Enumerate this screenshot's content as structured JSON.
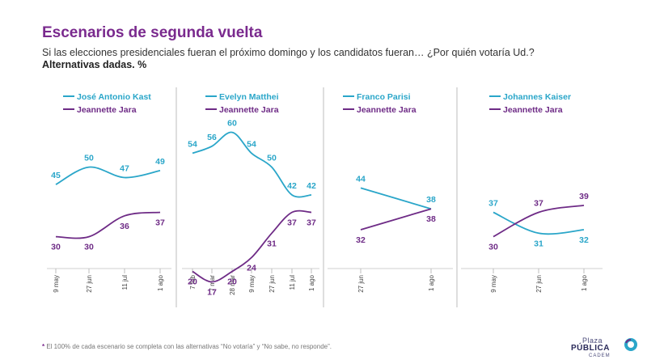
{
  "header": {
    "title": "Escenarios de segunda vuelta",
    "subtitle": "Si las elecciones presidenciales fueran el próximo domingo y los candidatos fueran… ¿Por quién votaría Ud.?",
    "subtitle2": "Alternativas dadas. %"
  },
  "footnote": {
    "star": "*",
    "text": " El 100% de cada escenario se completa con las alternativas “No votaría” y “No sabe, no responde”."
  },
  "logo": {
    "line1": "Plaza",
    "line2": "PÚBLICA",
    "line3": "CADEM"
  },
  "colors": {
    "blue": "#2aa6c9",
    "purple": "#6e2b86",
    "title": "#7a2a8e"
  },
  "chart_data": [
    {
      "type": "line",
      "x": [
        "9 may",
        "27 jun",
        "11 jul",
        "1 ago"
      ],
      "ylim": [
        0,
        80
      ],
      "series": [
        {
          "name": "José Antonio Kast",
          "color": "#2aa6c9",
          "values": [
            45,
            50,
            47,
            49
          ]
        },
        {
          "name": "Jeannette Jara",
          "color": "#6e2b86",
          "values": [
            30,
            30,
            36,
            37
          ]
        }
      ]
    },
    {
      "type": "line",
      "x": [
        "7 feb",
        "7 mar",
        "28 mar",
        "9 may",
        "27 jun",
        "11 jul",
        "1 ago"
      ],
      "ylim": [
        0,
        80
      ],
      "series": [
        {
          "name": "Evelyn Matthei",
          "color": "#2aa6c9",
          "values": [
            54,
            56,
            60,
            54,
            50,
            42,
            42
          ]
        },
        {
          "name": "Jeannette Jara",
          "color": "#6e2b86",
          "values": [
            20,
            17,
            20,
            24,
            31,
            37,
            37
          ]
        }
      ]
    },
    {
      "type": "line",
      "x": [
        "27 jun",
        "1 ago"
      ],
      "ylim": [
        0,
        80
      ],
      "series": [
        {
          "name": "Franco Parisi",
          "color": "#2aa6c9",
          "values": [
            44,
            38
          ]
        },
        {
          "name": "Jeannette Jara",
          "color": "#6e2b86",
          "values": [
            32,
            38
          ]
        }
      ]
    },
    {
      "type": "line",
      "x": [
        "9 may",
        "27 jun",
        "1 ago"
      ],
      "ylim": [
        0,
        80
      ],
      "series": [
        {
          "name": "Johannes Kaiser",
          "color": "#2aa6c9",
          "values": [
            37,
            31,
            32
          ]
        },
        {
          "name": "Jeannette Jara",
          "color": "#6e2b86",
          "values": [
            30,
            37,
            39
          ]
        }
      ]
    }
  ]
}
